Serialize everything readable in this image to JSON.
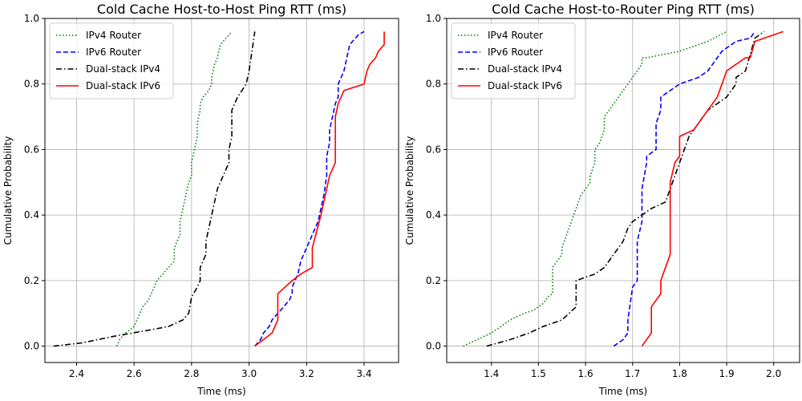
{
  "chart_data": [
    {
      "type": "line",
      "title": "Cold Cache Host-to-Host Ping RTT (ms)",
      "xlabel": "Time (ms)",
      "ylabel": "Cumulative Probability",
      "xlim": [
        2.29,
        3.52
      ],
      "ylim": [
        -0.05,
        1.0
      ],
      "xticks": [
        2.4,
        2.6,
        2.8,
        3.0,
        3.2,
        3.4
      ],
      "xtick_labels": [
        "2.4",
        "2.6",
        "2.8",
        "3.0",
        "3.2",
        "3.4"
      ],
      "yticks": [
        0.0,
        0.2,
        0.4,
        0.6,
        0.8,
        1.0
      ],
      "ytick_labels": [
        "0.0",
        "0.2",
        "0.4",
        "0.6",
        "0.8",
        "1.0"
      ],
      "grid": true,
      "legend_position": "top-left",
      "series": [
        {
          "name": "IPv4 Router",
          "color": "#008000",
          "dash": "dotted",
          "x": [
            2.54,
            2.55,
            2.57,
            2.6,
            2.61,
            2.62,
            2.63,
            2.65,
            2.67,
            2.68,
            2.7,
            2.72,
            2.74,
            2.74,
            2.75,
            2.76,
            2.76,
            2.77,
            2.78,
            2.79,
            2.8,
            2.8,
            2.81,
            2.82,
            2.82,
            2.83,
            2.83,
            2.84,
            2.86,
            2.87,
            2.87,
            2.88,
            2.89,
            2.9,
            2.92,
            2.94
          ],
          "y": [
            0.0,
            0.02,
            0.04,
            0.06,
            0.08,
            0.1,
            0.12,
            0.14,
            0.18,
            0.2,
            0.22,
            0.24,
            0.26,
            0.3,
            0.32,
            0.34,
            0.38,
            0.42,
            0.46,
            0.5,
            0.52,
            0.56,
            0.6,
            0.64,
            0.68,
            0.72,
            0.74,
            0.76,
            0.78,
            0.8,
            0.82,
            0.86,
            0.88,
            0.92,
            0.94,
            0.96
          ]
        },
        {
          "name": "IPv6 Router",
          "color": "#0000ff",
          "dash": "dashed",
          "x": [
            3.02,
            3.04,
            3.05,
            3.07,
            3.08,
            3.1,
            3.12,
            3.14,
            3.15,
            3.15,
            3.17,
            3.18,
            3.19,
            3.2,
            3.21,
            3.22,
            3.24,
            3.25,
            3.26,
            3.27,
            3.27,
            3.28,
            3.28,
            3.29,
            3.3,
            3.31,
            3.31,
            3.32,
            3.33,
            3.34,
            3.35,
            3.37,
            3.38,
            3.4
          ],
          "y": [
            0.0,
            0.02,
            0.04,
            0.06,
            0.08,
            0.1,
            0.12,
            0.14,
            0.16,
            0.18,
            0.22,
            0.26,
            0.28,
            0.3,
            0.32,
            0.34,
            0.38,
            0.42,
            0.46,
            0.52,
            0.58,
            0.62,
            0.66,
            0.7,
            0.74,
            0.76,
            0.8,
            0.82,
            0.84,
            0.88,
            0.92,
            0.94,
            0.95,
            0.96
          ]
        },
        {
          "name": "Dual-stack IPv4",
          "color": "#000000",
          "dash": "dashdot",
          "x": [
            2.32,
            2.42,
            2.53,
            2.66,
            2.72,
            2.77,
            2.79,
            2.8,
            2.82,
            2.83,
            2.83,
            2.85,
            2.85,
            2.86,
            2.87,
            2.88,
            2.89,
            2.91,
            2.93,
            2.93,
            2.94,
            2.94,
            2.96,
            2.99,
            3.0,
            3.01,
            3.02
          ],
          "y": [
            0.0,
            0.01,
            0.03,
            0.05,
            0.06,
            0.08,
            0.1,
            0.15,
            0.18,
            0.2,
            0.24,
            0.28,
            0.32,
            0.36,
            0.4,
            0.44,
            0.48,
            0.52,
            0.56,
            0.6,
            0.64,
            0.72,
            0.76,
            0.8,
            0.84,
            0.9,
            0.96
          ]
        },
        {
          "name": "Dual-stack IPv6",
          "color": "#ff0000",
          "dash": "solid",
          "x": [
            3.02,
            3.05,
            3.08,
            3.1,
            3.1,
            3.15,
            3.18,
            3.22,
            3.22,
            3.25,
            3.28,
            3.3,
            3.3,
            3.31,
            3.32,
            3.33,
            3.4,
            3.41,
            3.42,
            3.44,
            3.45,
            3.47,
            3.47
          ],
          "y": [
            0.0,
            0.02,
            0.04,
            0.08,
            0.16,
            0.2,
            0.22,
            0.24,
            0.3,
            0.4,
            0.52,
            0.56,
            0.7,
            0.74,
            0.76,
            0.78,
            0.8,
            0.84,
            0.86,
            0.88,
            0.9,
            0.92,
            0.96
          ]
        }
      ]
    },
    {
      "type": "line",
      "title": "Cold Cache Host-to-Router Ping RTT (ms)",
      "xlabel": "Time (ms)",
      "ylabel": "Cumulative Probability",
      "xlim": [
        1.305,
        2.055
      ],
      "ylim": [
        -0.05,
        1.0
      ],
      "xticks": [
        1.4,
        1.5,
        1.6,
        1.7,
        1.8,
        1.9,
        2.0
      ],
      "xtick_labels": [
        "1.4",
        "1.5",
        "1.6",
        "1.7",
        "1.8",
        "1.9",
        "2.0"
      ],
      "yticks": [
        0.0,
        0.2,
        0.4,
        0.6,
        0.8,
        1.0
      ],
      "ytick_labels": [
        "0.0",
        "0.2",
        "0.4",
        "0.6",
        "0.8",
        "1.0"
      ],
      "grid": true,
      "legend_position": "top-left",
      "series": [
        {
          "name": "IPv4 Router",
          "color": "#008000",
          "dash": "dotted",
          "x": [
            1.34,
            1.37,
            1.4,
            1.42,
            1.44,
            1.47,
            1.49,
            1.51,
            1.52,
            1.53,
            1.53,
            1.53,
            1.54,
            1.55,
            1.55,
            1.56,
            1.57,
            1.58,
            1.59,
            1.6,
            1.61,
            1.61,
            1.62,
            1.62,
            1.63,
            1.64,
            1.64,
            1.65,
            1.66,
            1.67,
            1.68,
            1.69,
            1.7,
            1.71,
            1.72,
            1.72,
            1.73,
            1.73,
            1.8,
            1.86,
            1.9
          ],
          "y": [
            0.0,
            0.02,
            0.04,
            0.06,
            0.08,
            0.1,
            0.11,
            0.13,
            0.15,
            0.16,
            0.2,
            0.24,
            0.26,
            0.28,
            0.3,
            0.34,
            0.38,
            0.42,
            0.46,
            0.48,
            0.5,
            0.52,
            0.56,
            0.6,
            0.62,
            0.66,
            0.7,
            0.72,
            0.74,
            0.76,
            0.78,
            0.8,
            0.82,
            0.84,
            0.86,
            0.88,
            0.88,
            0.88,
            0.9,
            0.93,
            0.96
          ]
        },
        {
          "name": "IPv6 Router",
          "color": "#0000ff",
          "dash": "dashed",
          "x": [
            1.66,
            1.68,
            1.69,
            1.69,
            1.7,
            1.71,
            1.71,
            1.72,
            1.72,
            1.73,
            1.73,
            1.75,
            1.75,
            1.76,
            1.76,
            1.8,
            1.84,
            1.86,
            1.89,
            1.91,
            1.92,
            1.95,
            1.96
          ],
          "y": [
            0.0,
            0.02,
            0.04,
            0.08,
            0.18,
            0.2,
            0.32,
            0.38,
            0.48,
            0.56,
            0.58,
            0.6,
            0.68,
            0.72,
            0.76,
            0.8,
            0.82,
            0.84,
            0.9,
            0.92,
            0.93,
            0.94,
            0.96
          ]
        },
        {
          "name": "Dual-stack IPv4",
          "color": "#000000",
          "dash": "dashdot",
          "x": [
            1.39,
            1.44,
            1.48,
            1.51,
            1.55,
            1.58,
            1.58,
            1.62,
            1.64,
            1.66,
            1.67,
            1.68,
            1.69,
            1.7,
            1.72,
            1.74,
            1.77,
            1.78,
            1.79,
            1.8,
            1.81,
            1.82,
            1.83,
            1.84,
            1.86,
            1.87,
            1.88,
            1.9,
            1.9,
            1.92,
            1.92,
            1.94,
            1.96,
            1.98
          ],
          "y": [
            0.0,
            0.02,
            0.04,
            0.06,
            0.08,
            0.12,
            0.2,
            0.22,
            0.24,
            0.28,
            0.3,
            0.32,
            0.36,
            0.38,
            0.4,
            0.42,
            0.44,
            0.48,
            0.52,
            0.56,
            0.6,
            0.64,
            0.66,
            0.68,
            0.72,
            0.73,
            0.74,
            0.76,
            0.76,
            0.8,
            0.82,
            0.84,
            0.94,
            0.96
          ]
        },
        {
          "name": "Dual-stack IPv6",
          "color": "#ff0000",
          "dash": "solid",
          "x": [
            1.72,
            1.74,
            1.74,
            1.76,
            1.76,
            1.78,
            1.78,
            1.79,
            1.8,
            1.8,
            1.83,
            1.85,
            1.86,
            1.88,
            1.9,
            1.92,
            1.94,
            1.95,
            1.96,
            2.02
          ],
          "y": [
            0.0,
            0.04,
            0.12,
            0.16,
            0.2,
            0.28,
            0.5,
            0.56,
            0.58,
            0.64,
            0.66,
            0.7,
            0.72,
            0.76,
            0.84,
            0.86,
            0.88,
            0.88,
            0.93,
            0.96
          ]
        }
      ]
    }
  ]
}
